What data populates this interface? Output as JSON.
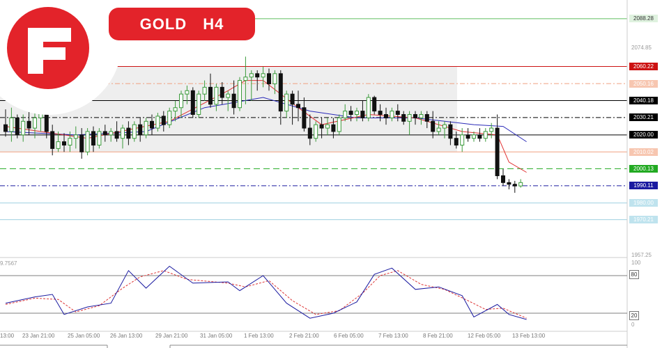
{
  "header": {
    "symbol": "GOLD",
    "timeframe": "H4"
  },
  "oscillator": {
    "current_value_text": "9.7567",
    "levels": [
      "80",
      "20"
    ],
    "axis_labels": [
      "100",
      "0"
    ]
  },
  "colors": {
    "brand": "#e3232a",
    "bull": "#3a9a3a",
    "bear": "#111111",
    "ma_fast": "#e03030",
    "ma_slow": "#2a2ab8"
  },
  "chart_data": {
    "type": "candlestick",
    "symbol": "GOLD",
    "timeframe": "H4",
    "ylim": [
      1950,
      2096
    ],
    "price_ticks": [
      "2074.85",
      "1957.25"
    ],
    "time_labels": [
      "13:00",
      "23 Jan 21:00",
      "25 Jan 05:00",
      "26 Jan 13:00",
      "29 Jan 21:00",
      "31 Jan 05:00",
      "1 Feb 13:00",
      "2 Feb 21:00",
      "6 Feb 05:00",
      "7 Feb 13:00",
      "8 Feb 21:00",
      "12 Feb 05:00",
      "13 Feb 13:00"
    ],
    "levels": [
      {
        "value": 2088.28,
        "label": "2088.28",
        "color": "#5fbf5f",
        "style": "solid",
        "tag_bg": "#dff2df",
        "tag_fg": "#333333"
      },
      {
        "value": 2060.22,
        "label": "2060.22",
        "color": "#cc1111",
        "style": "solid",
        "tag_bg": "#cc1111",
        "tag_fg": "#ffffff"
      },
      {
        "value": 2050.16,
        "label": "2050.16",
        "color": "#f0a080",
        "style": "dashdot",
        "tag_bg": "#f7c6b0",
        "tag_fg": "#ffffff"
      },
      {
        "value": 2040.18,
        "label": "2040.18",
        "color": "#000000",
        "style": "solid",
        "tag_bg": "#000000",
        "tag_fg": "#ffffff"
      },
      {
        "value": 2030.21,
        "label": "2030.21",
        "color": "#000000",
        "style": "dashdot",
        "tag_bg": "#000000",
        "tag_fg": "#ffffff"
      },
      {
        "value": 2020.0,
        "label": "2020.00",
        "color": "#000000",
        "style": "solid",
        "tag_bg": "#000000",
        "tag_fg": "#ffffff"
      },
      {
        "value": 2010.02,
        "label": "2010.02",
        "color": "#f0a080",
        "style": "solid",
        "tag_bg": "#f7c6b0",
        "tag_fg": "#ffffff"
      },
      {
        "value": 2000.13,
        "label": "2000.13",
        "color": "#22aa22",
        "style": "dashed",
        "tag_bg": "#22aa22",
        "tag_fg": "#ffffff"
      },
      {
        "value": 1990.11,
        "label": "1990.11",
        "color": "#1a1aa0",
        "style": "dashdot",
        "tag_bg": "#1a1aa0",
        "tag_fg": "#ffffff"
      },
      {
        "value": 1980.0,
        "label": "1980.00",
        "color": "#9fd0e0",
        "style": "solid",
        "tag_bg": "#bfe3ee",
        "tag_fg": "#ffffff"
      },
      {
        "value": 1970.21,
        "label": "1970.21",
        "color": "#9fd0e0",
        "style": "solid",
        "tag_bg": "#bfe3ee",
        "tag_fg": "#ffffff"
      }
    ],
    "range_box": {
      "top": 2060.22,
      "bottom": 2010.02
    },
    "candles": [
      [
        2026,
        2035,
        2019,
        2022
      ],
      [
        2022,
        2036,
        2016,
        2030
      ],
      [
        2030,
        2032,
        2018,
        2020
      ],
      [
        2020,
        2032,
        2016,
        2028
      ],
      [
        2028,
        2034,
        2020,
        2024
      ],
      [
        2024,
        2033,
        2018,
        2030
      ],
      [
        2030,
        2036,
        2022,
        2033
      ],
      [
        2033,
        2037,
        2018,
        2022
      ],
      [
        2022,
        2026,
        2008,
        2012
      ],
      [
        2012,
        2022,
        2010,
        2016
      ],
      [
        2016,
        2021,
        2010,
        2014
      ],
      [
        2014,
        2022,
        2010,
        2018
      ],
      [
        2018,
        2025,
        2012,
        2020
      ],
      [
        2020,
        2024,
        2006,
        2010
      ],
      [
        2010,
        2024,
        2008,
        2022
      ],
      [
        2022,
        2025,
        2010,
        2014
      ],
      [
        2014,
        2024,
        2012,
        2022
      ],
      [
        2022,
        2026,
        2016,
        2020
      ],
      [
        2020,
        2024,
        2016,
        2022
      ],
      [
        2022,
        2028,
        2016,
        2018
      ],
      [
        2018,
        2026,
        2012,
        2024
      ],
      [
        2024,
        2028,
        2014,
        2018
      ],
      [
        2018,
        2028,
        2016,
        2026
      ],
      [
        2026,
        2030,
        2016,
        2020
      ],
      [
        2020,
        2030,
        2018,
        2028
      ],
      [
        2028,
        2032,
        2020,
        2024
      ],
      [
        2024,
        2033,
        2022,
        2031
      ],
      [
        2031,
        2034,
        2022,
        2026
      ],
      [
        2026,
        2036,
        2024,
        2034
      ],
      [
        2034,
        2040,
        2028,
        2036
      ],
      [
        2036,
        2046,
        2030,
        2044
      ],
      [
        2044,
        2049,
        2038,
        2046
      ],
      [
        2046,
        2048,
        2030,
        2032
      ],
      [
        2032,
        2046,
        2030,
        2044
      ],
      [
        2044,
        2052,
        2040,
        2048
      ],
      [
        2048,
        2056,
        2036,
        2038
      ],
      [
        2038,
        2050,
        2034,
        2048
      ],
      [
        2048,
        2051,
        2038,
        2042
      ],
      [
        2042,
        2046,
        2034,
        2044
      ],
      [
        2044,
        2052,
        2032,
        2036
      ],
      [
        2036,
        2054,
        2034,
        2052
      ],
      [
        2052,
        2066,
        2038,
        2054
      ],
      [
        2054,
        2058,
        2040,
        2056
      ],
      [
        2056,
        2058,
        2046,
        2054
      ],
      [
        2054,
        2060,
        2048,
        2056
      ],
      [
        2056,
        2059,
        2046,
        2050
      ],
      [
        2050,
        2058,
        2044,
        2056
      ],
      [
        2056,
        2058,
        2026,
        2034
      ],
      [
        2034,
        2046,
        2030,
        2044
      ],
      [
        2044,
        2046,
        2026,
        2038
      ],
      [
        2038,
        2046,
        2028,
        2036
      ],
      [
        2036,
        2042,
        2022,
        2024
      ],
      [
        2024,
        2032,
        2014,
        2018
      ],
      [
        2018,
        2028,
        2016,
        2026
      ],
      [
        2026,
        2030,
        2018,
        2024
      ],
      [
        2024,
        2030,
        2020,
        2026
      ],
      [
        2026,
        2030,
        2018,
        2022
      ],
      [
        2022,
        2032,
        2020,
        2030
      ],
      [
        2030,
        2038,
        2028,
        2034
      ],
      [
        2034,
        2037,
        2028,
        2032
      ],
      [
        2032,
        2036,
        2028,
        2034
      ],
      [
        2034,
        2040,
        2028,
        2030
      ],
      [
        2030,
        2044,
        2028,
        2042
      ],
      [
        2042,
        2043,
        2032,
        2034
      ],
      [
        2034,
        2038,
        2028,
        2032
      ],
      [
        2032,
        2036,
        2026,
        2030
      ],
      [
        2030,
        2036,
        2028,
        2034
      ],
      [
        2034,
        2038,
        2028,
        2032
      ],
      [
        2032,
        2034,
        2026,
        2028
      ],
      [
        2028,
        2034,
        2020,
        2032
      ],
      [
        2032,
        2034,
        2026,
        2030
      ],
      [
        2030,
        2034,
        2026,
        2032
      ],
      [
        2032,
        2034,
        2024,
        2028
      ],
      [
        2028,
        2034,
        2018,
        2022
      ],
      [
        2022,
        2028,
        2020,
        2024
      ],
      [
        2024,
        2028,
        2018,
        2026
      ],
      [
        2026,
        2028,
        2014,
        2018
      ],
      [
        2018,
        2022,
        2012,
        2014
      ],
      [
        2014,
        2024,
        2010,
        2020
      ],
      [
        2020,
        2024,
        2016,
        2018
      ],
      [
        2018,
        2022,
        2016,
        2020
      ],
      [
        2020,
        2024,
        2016,
        2018
      ],
      [
        2018,
        2024,
        2016,
        2022
      ],
      [
        2022,
        2027,
        2018,
        2024
      ],
      [
        2024,
        2032,
        1994,
        1996
      ],
      [
        1996,
        2000,
        1990,
        1992
      ],
      [
        1992,
        1994,
        1988,
        1991
      ],
      [
        1991,
        1993,
        1986,
        1990
      ],
      [
        1990,
        1994,
        1989,
        1992
      ]
    ],
    "ma_fast": [
      [
        0,
        2025
      ],
      [
        14,
        2018
      ],
      [
        28,
        2028
      ],
      [
        38,
        2046
      ],
      [
        41,
        2052
      ],
      [
        44,
        2052
      ],
      [
        50,
        2036
      ],
      [
        54,
        2026
      ],
      [
        62,
        2032
      ],
      [
        70,
        2030
      ],
      [
        78,
        2022
      ],
      [
        84,
        2020
      ],
      [
        86,
        2004
      ],
      [
        89,
        1998
      ]
    ],
    "ma_slow": [
      [
        0,
        2022
      ],
      [
        12,
        2020
      ],
      [
        24,
        2022
      ],
      [
        34,
        2036
      ],
      [
        44,
        2042
      ],
      [
        52,
        2034
      ],
      [
        60,
        2030
      ],
      [
        70,
        2030
      ],
      [
        80,
        2026
      ],
      [
        85,
        2025
      ],
      [
        89,
        2016
      ]
    ],
    "stoch_k": [
      [
        0,
        36
      ],
      [
        5,
        46
      ],
      [
        8,
        50
      ],
      [
        10,
        18
      ],
      [
        14,
        30
      ],
      [
        18,
        36
      ],
      [
        21,
        88
      ],
      [
        24,
        60
      ],
      [
        28,
        95
      ],
      [
        32,
        68
      ],
      [
        38,
        70
      ],
      [
        40,
        56
      ],
      [
        44,
        80
      ],
      [
        48,
        36
      ],
      [
        52,
        12
      ],
      [
        56,
        20
      ],
      [
        60,
        38
      ],
      [
        63,
        82
      ],
      [
        66,
        92
      ],
      [
        70,
        58
      ],
      [
        74,
        62
      ],
      [
        78,
        48
      ],
      [
        80,
        14
      ],
      [
        84,
        34
      ],
      [
        86,
        18
      ],
      [
        89,
        10
      ]
    ],
    "stoch_d": [
      [
        0,
        34
      ],
      [
        5,
        44
      ],
      [
        9,
        42
      ],
      [
        12,
        22
      ],
      [
        16,
        32
      ],
      [
        20,
        60
      ],
      [
        23,
        78
      ],
      [
        27,
        88
      ],
      [
        31,
        74
      ],
      [
        38,
        68
      ],
      [
        41,
        62
      ],
      [
        45,
        72
      ],
      [
        49,
        40
      ],
      [
        53,
        18
      ],
      [
        57,
        24
      ],
      [
        61,
        52
      ],
      [
        64,
        80
      ],
      [
        67,
        88
      ],
      [
        71,
        66
      ],
      [
        75,
        58
      ],
      [
        79,
        40
      ],
      [
        82,
        26
      ],
      [
        85,
        28
      ],
      [
        89,
        12
      ]
    ]
  }
}
